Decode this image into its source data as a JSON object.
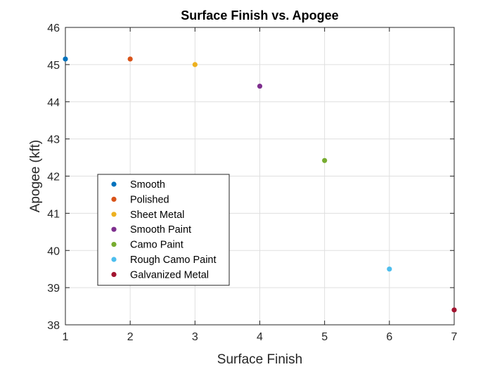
{
  "chart_data": {
    "type": "scatter",
    "title": "Surface Finish vs. Apogee",
    "xlabel": "Surface Finish",
    "ylabel": "Apogee (kft)",
    "xlim": [
      1,
      7
    ],
    "ylim": [
      38,
      46
    ],
    "xticks": [
      1,
      2,
      3,
      4,
      5,
      6,
      7
    ],
    "yticks": [
      38,
      39,
      40,
      41,
      42,
      43,
      44,
      45,
      46
    ],
    "grid": true,
    "legend_position": "lower-left",
    "series": [
      {
        "name": "Smooth",
        "x": [
          1
        ],
        "y": [
          45.15
        ],
        "color": "#0072BD"
      },
      {
        "name": "Polished",
        "x": [
          2
        ],
        "y": [
          45.15
        ],
        "color": "#D95319"
      },
      {
        "name": "Sheet Metal",
        "x": [
          3
        ],
        "y": [
          45.0
        ],
        "color": "#EDB120"
      },
      {
        "name": "Smooth Paint",
        "x": [
          4
        ],
        "y": [
          44.42
        ],
        "color": "#7E2F8E"
      },
      {
        "name": "Camo Paint",
        "x": [
          5
        ],
        "y": [
          42.42
        ],
        "color": "#77AC30"
      },
      {
        "name": "Rough Camo Paint",
        "x": [
          6
        ],
        "y": [
          39.5
        ],
        "color": "#4DBEEE"
      },
      {
        "name": "Galvanized Metal",
        "x": [
          7
        ],
        "y": [
          38.4
        ],
        "color": "#A2142F"
      }
    ]
  }
}
